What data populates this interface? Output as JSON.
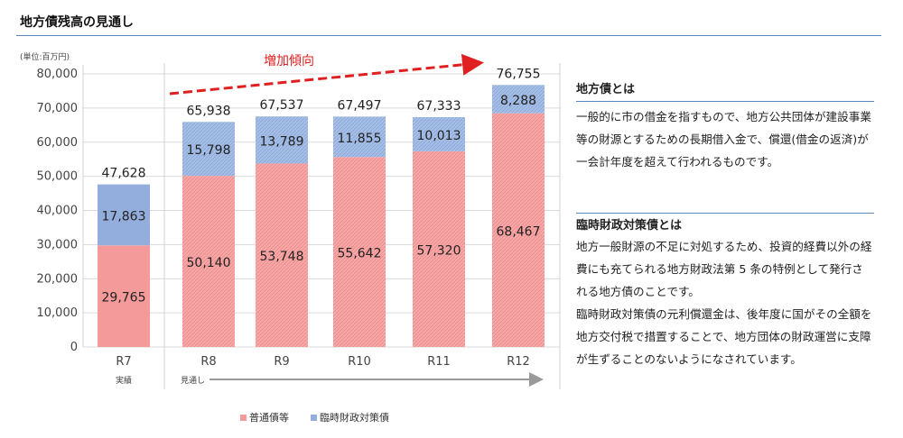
{
  "page_title": "地方債残高の見通し",
  "unit_label": "(単位:百万円)",
  "trend_label": "増加傾向",
  "axis_sublabels": [
    "実績",
    "見通し"
  ],
  "colors": {
    "regular": "#f59a9a",
    "emergency": "#93aedd",
    "trend": "#e02020",
    "rule": "#5b87b8"
  },
  "chart_data": {
    "type": "bar",
    "stacked": true,
    "categories": [
      "R7",
      "R8",
      "R9",
      "R10",
      "R11",
      "R12"
    ],
    "series": [
      {
        "name": "普通債等",
        "values": [
          29765,
          50140,
          53748,
          55642,
          57320,
          68467
        ]
      },
      {
        "name": "臨時財政対策債",
        "values": [
          17863,
          15798,
          13789,
          11855,
          10013,
          8288
        ]
      }
    ],
    "totals": [
      47628,
      65938,
      67537,
      67497,
      67333,
      76755
    ],
    "value_labels": {
      "regular": [
        "29,765",
        "50,140",
        "53,748",
        "55,642",
        "57,320",
        "68,467"
      ],
      "emergency": [
        "17,863",
        "15,798",
        "13,789",
        "11,855",
        "10,013",
        "8,288"
      ],
      "totals": [
        "47,628",
        "65,938",
        "67,537",
        "67,497",
        "67,333",
        "76,755"
      ]
    },
    "yticks": [
      "0",
      "10,000",
      "20,000",
      "30,000",
      "40,000",
      "50,000",
      "60,000",
      "70,000",
      "80,000"
    ],
    "ylim": [
      0,
      80000
    ],
    "legend_position": "bottom",
    "bar_style": [
      "solid",
      "hatched",
      "hatched",
      "hatched",
      "hatched",
      "hatched"
    ]
  },
  "notes": [
    {
      "heading": "地方債とは",
      "body": [
        "一般的に市の借金を指すもので、地方公共団体が建設事業等の財源とするための長期借入金で、償還(借金の返済)が一会計年度を超えて行われるものです。"
      ]
    },
    {
      "heading": "臨時財政対策債とは",
      "body": [
        "地方一般財源の不足に対処するため、投資的経費以外の経費にも充てられる地方財政法第 5 条の特例として発行される地方債のことです。",
        "臨時財政対策債の元利償還金は、後年度に国がその全額を地方交付税で措置することで、地方団体の財政運営に支障が生ずることのないようになされています。"
      ]
    }
  ]
}
